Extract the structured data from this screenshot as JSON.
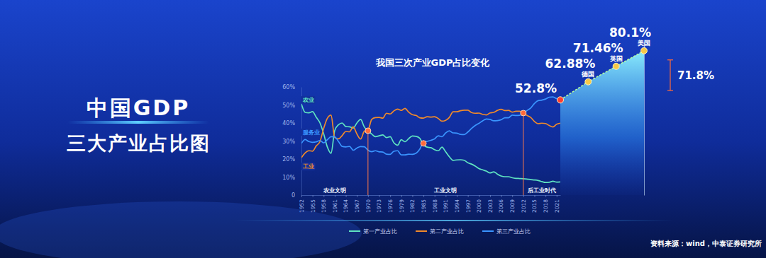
{
  "header": {
    "title": "中国GDP",
    "subtitle": "三大产业占比图"
  },
  "source": "资料来源：wind，中泰证券研究所",
  "chart_data": [
    {
      "type": "line",
      "title": "我国三次产业GDP占比变化",
      "x": [
        1952,
        1953,
        1954,
        1955,
        1956,
        1957,
        1958,
        1959,
        1960,
        1961,
        1962,
        1963,
        1964,
        1965,
        1966,
        1967,
        1968,
        1969,
        1970,
        1971,
        1972,
        1973,
        1974,
        1975,
        1976,
        1977,
        1978,
        1979,
        1980,
        1981,
        1982,
        1983,
        1984,
        1985,
        1986,
        1987,
        1988,
        1989,
        1990,
        1991,
        1992,
        1993,
        1994,
        1995,
        1996,
        1997,
        1998,
        1999,
        2000,
        2001,
        2002,
        2003,
        2004,
        2005,
        2006,
        2007,
        2008,
        2009,
        2010,
        2011,
        2012,
        2013,
        2014,
        2015,
        2016,
        2017,
        2018,
        2019,
        2020,
        2021,
        2022
      ],
      "xlim": [
        1952,
        2022
      ],
      "xticks": [
        1952,
        1955,
        1958,
        1961,
        1964,
        1967,
        1970,
        1973,
        1976,
        1979,
        1982,
        1985,
        1988,
        1991,
        1994,
        1997,
        2000,
        2003,
        2006,
        2009,
        2012,
        2015,
        2018,
        2021
      ],
      "ylim": [
        0,
        60
      ],
      "yticks": [
        0,
        {
          "value": 10,
          "label": "10%"
        },
        {
          "value": 20,
          "label": "20%"
        },
        {
          "value": 30,
          "label": "30%"
        },
        {
          "value": 40,
          "label": "40%"
        },
        {
          "value": 50,
          "label": "50%"
        },
        {
          "value": 60,
          "label": "60%"
        }
      ],
      "grid": false,
      "legend": "bottom",
      "series": [
        {
          "name": "第一产业占比",
          "color": "#5fe3c1",
          "values": [
            50.5,
            45.9,
            45.6,
            46.3,
            43.2,
            40.1,
            34.1,
            26.7,
            23.2,
            35.8,
            39.0,
            40.0,
            38.0,
            37.9,
            37.2,
            40.0,
            42.0,
            37.8,
            35.5,
            33.9,
            32.4,
            32.9,
            33.4,
            31.9,
            32.4,
            29.0,
            27.7,
            30.7,
            29.6,
            31.3,
            32.8,
            32.6,
            31.5,
            27.9,
            26.6,
            26.3,
            25.2,
            24.6,
            26.6,
            24.0,
            21.3,
            19.3,
            19.5,
            19.6,
            19.3,
            17.9,
            17.2,
            16.1,
            14.7,
            14.0,
            13.3,
            12.3,
            12.9,
            11.6,
            10.6,
            10.2,
            10.2,
            9.6,
            9.3,
            9.2,
            9.1,
            8.9,
            8.6,
            8.4,
            8.1,
            7.5,
            7.0,
            7.1,
            7.7,
            7.2,
            7.3
          ]
        },
        {
          "name": "第二产业占比",
          "color": "#f08a2a",
          "values": [
            20.8,
            23.4,
            24.6,
            24.4,
            27.3,
            29.6,
            36.9,
            42.6,
            44.4,
            31.9,
            31.2,
            33.0,
            35.3,
            35.1,
            37.9,
            33.9,
            31.1,
            35.4,
            36.0,
            42.0,
            43.0,
            43.1,
            42.7,
            45.4,
            45.0,
            46.7,
            47.7,
            47.0,
            48.1,
            46.0,
            44.6,
            44.2,
            42.9,
            42.7,
            43.5,
            43.3,
            43.5,
            42.5,
            41.0,
            41.5,
            43.1,
            46.2,
            46.2,
            46.8,
            47.1,
            47.1,
            45.8,
            45.4,
            45.5,
            44.8,
            44.5,
            45.6,
            45.9,
            47.0,
            47.6,
            46.9,
            47.0,
            46.0,
            46.5,
            46.5,
            45.4,
            44.2,
            43.1,
            40.8,
            39.6,
            39.9,
            39.7,
            38.6,
            37.8,
            39.3,
            39.9
          ]
        },
        {
          "name": "第三产业占比",
          "color": "#3a95ff",
          "values": [
            28.7,
            30.8,
            29.7,
            29.3,
            29.5,
            30.3,
            29.0,
            30.7,
            32.4,
            32.3,
            29.8,
            27.0,
            26.7,
            27.0,
            24.9,
            26.1,
            26.9,
            26.8,
            24.9,
            24.1,
            24.6,
            24.0,
            23.9,
            22.7,
            22.6,
            24.3,
            24.6,
            22.3,
            22.3,
            22.7,
            22.6,
            23.2,
            25.5,
            29.4,
            29.8,
            30.4,
            31.2,
            32.9,
            32.4,
            34.5,
            35.6,
            34.5,
            34.4,
            33.7,
            33.6,
            35.0,
            37.0,
            38.6,
            39.8,
            41.2,
            42.2,
            42.0,
            41.2,
            41.3,
            41.8,
            42.9,
            42.9,
            44.4,
            44.2,
            44.3,
            45.5,
            46.9,
            48.3,
            50.8,
            52.4,
            52.7,
            53.3,
            54.3,
            54.5,
            53.5,
            52.8
          ]
        }
      ],
      "annotations": [
        {
          "text": "农业",
          "x": 1952,
          "y": 53
        },
        {
          "text": "工业",
          "x": 1952,
          "y": 16
        },
        {
          "text": "服务业",
          "x": 1952,
          "y": 35
        }
      ],
      "eras": [
        {
          "label": "农业文明",
          "start": 1952,
          "end": 1970
        },
        {
          "label": "工业文明",
          "start": 1970,
          "end": 2012
        },
        {
          "label": "后工业时代",
          "start": 2012,
          "end": 2022
        }
      ],
      "highlights": [
        {
          "x": 1970,
          "y": 35.7
        },
        {
          "x": 1985,
          "y": 28.7
        },
        {
          "x": 2012,
          "y": 45.5
        },
        {
          "x": 2022,
          "y": 52.8
        }
      ]
    },
    {
      "type": "area",
      "categories": [
        null,
        "德国",
        "英国",
        "美国"
      ],
      "values": [
        52.8,
        62.88,
        71.46,
        80.1
      ],
      "value_labels": [
        "52.8%",
        "62.88%",
        "71.46%",
        "80.1%"
      ],
      "data_labels": true,
      "tick_labels": false,
      "ylim": [
        0,
        85
      ],
      "bracket": {
        "label": "71.8%",
        "from": 58,
        "to": 75
      }
    }
  ]
}
